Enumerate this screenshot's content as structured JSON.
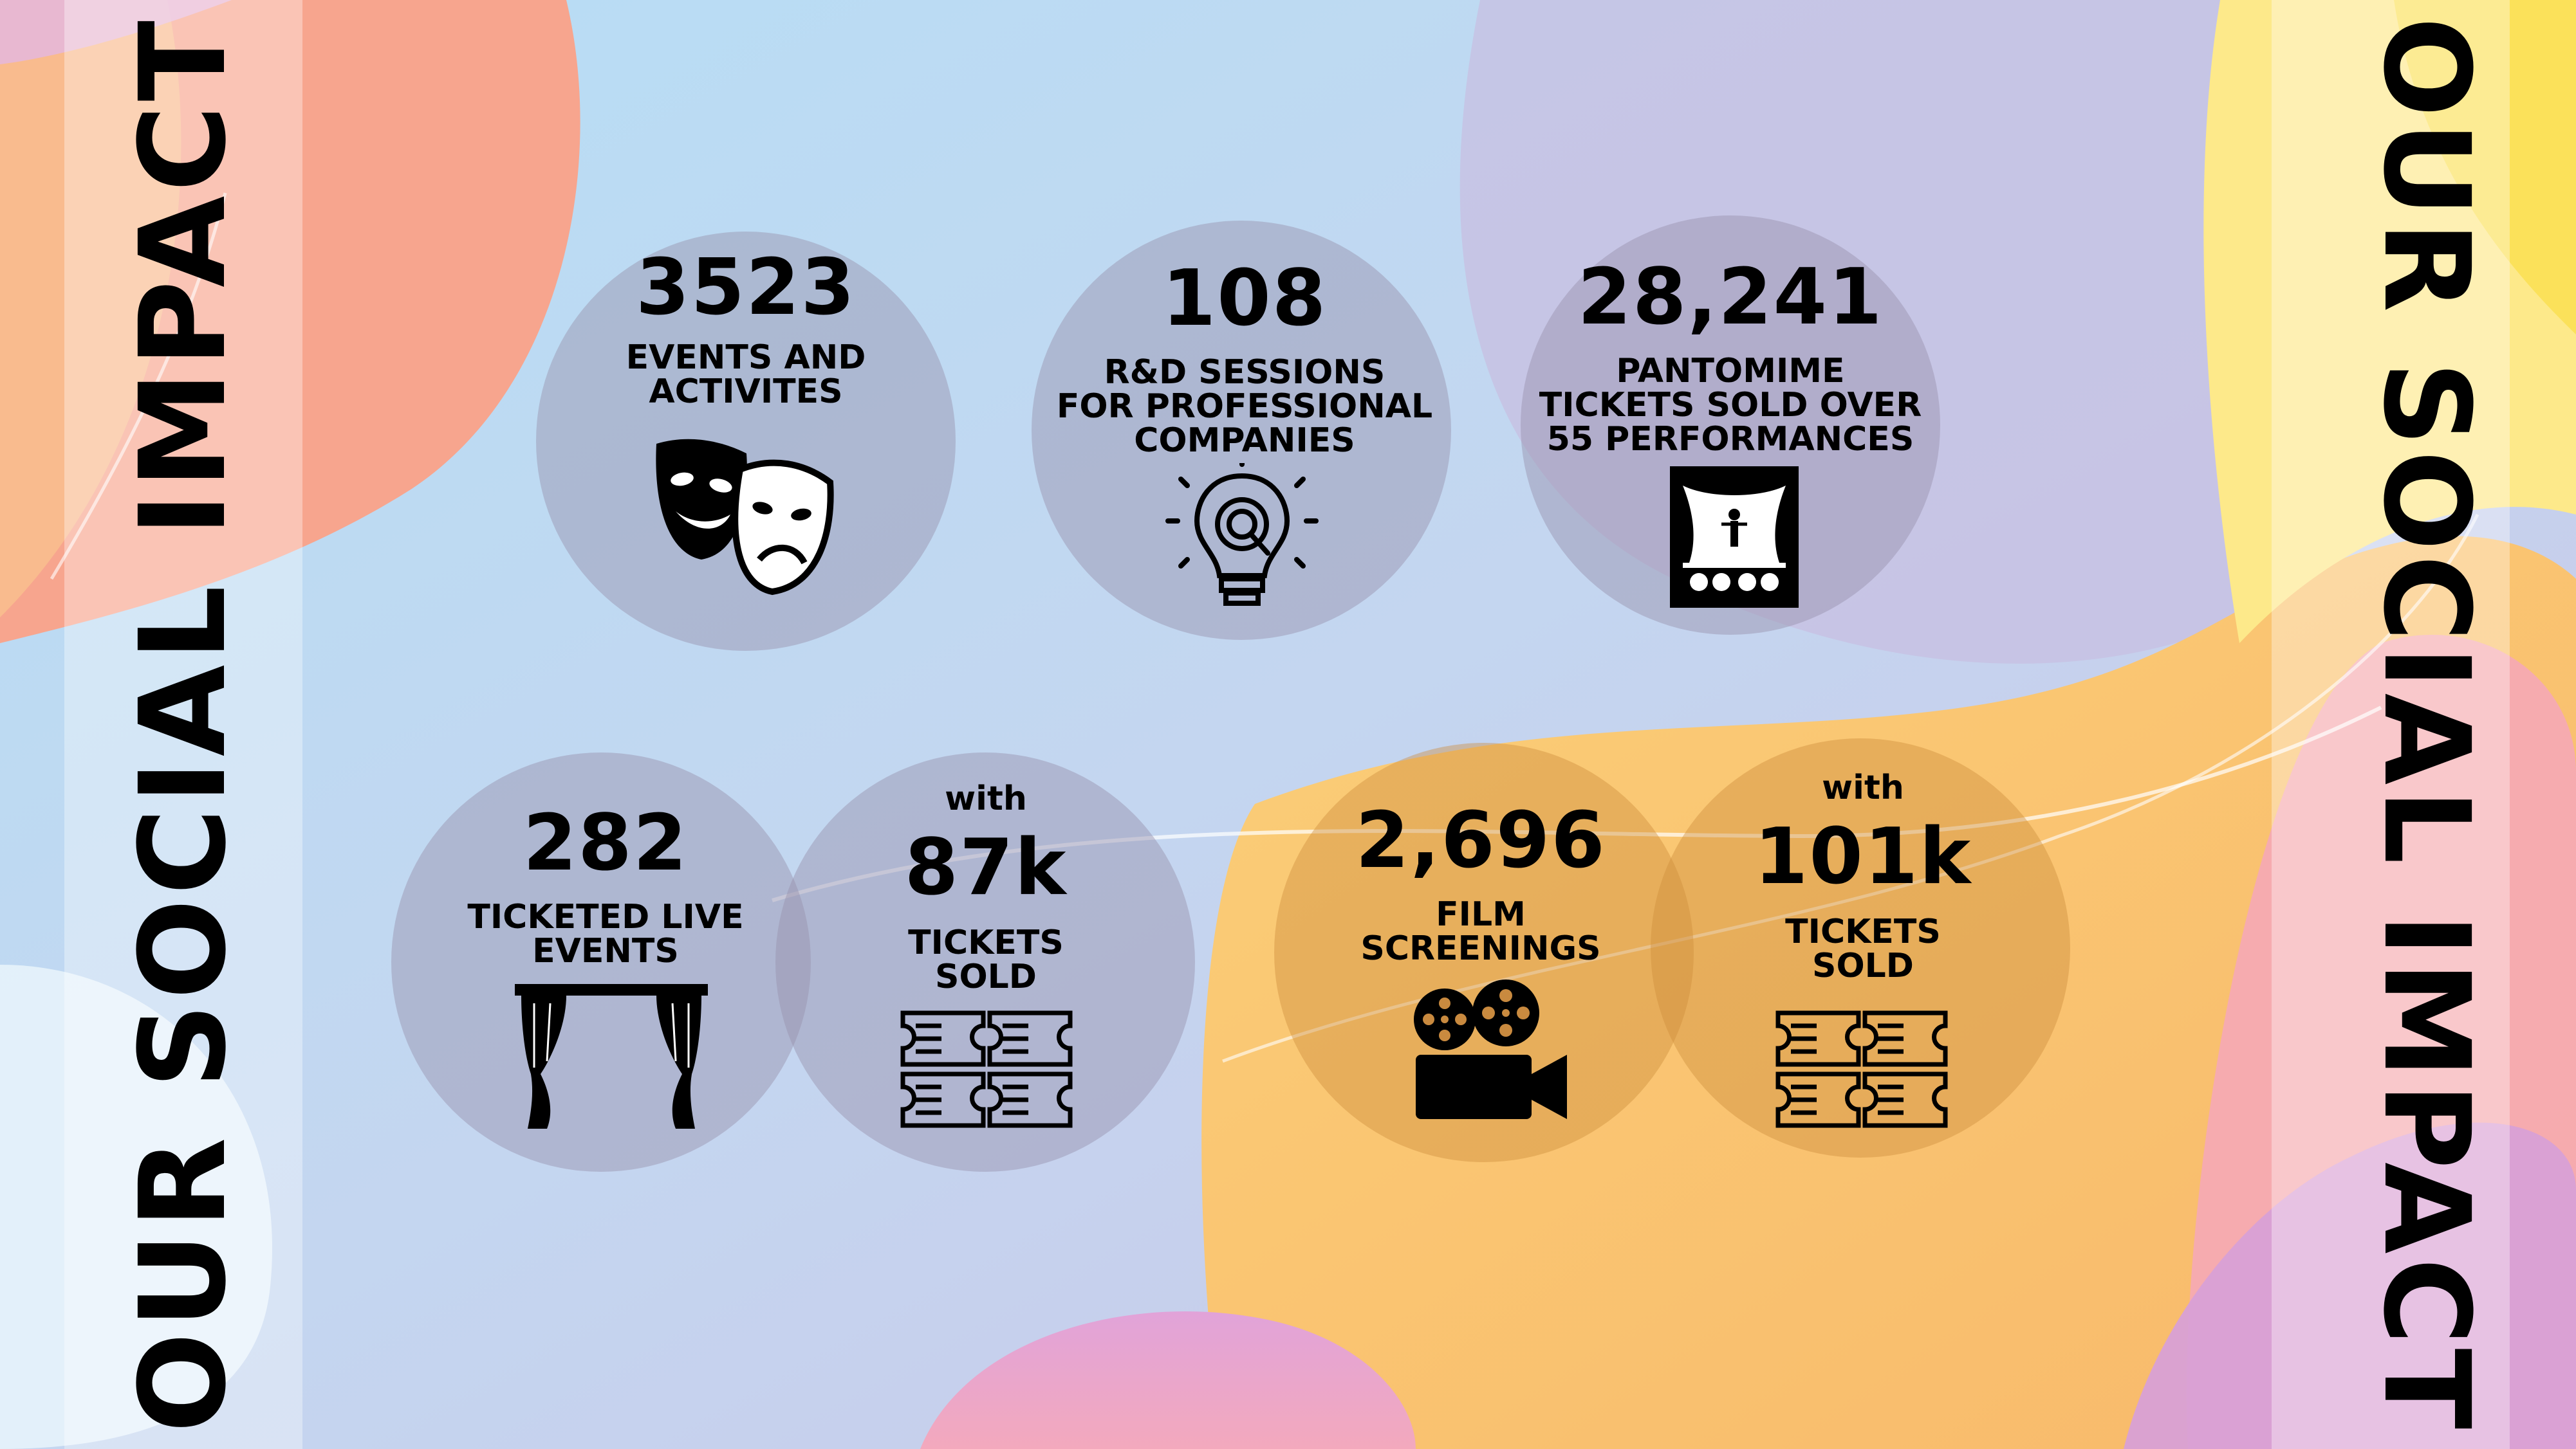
{
  "title_left": "OUR SOCIAL IMPACT",
  "title_right": "OUR SOCIAL IMPACT",
  "stats": {
    "events": {
      "number": "3523",
      "label_lines": [
        "EVENTS AND",
        "ACTIVITES"
      ],
      "icon": "theatre-masks-icon"
    },
    "rd": {
      "number": "108",
      "label_lines": [
        "R&D SESSIONS",
        "FOR PROFESSIONAL",
        "COMPANIES"
      ],
      "icon": "lightbulb-gear-icon"
    },
    "pantomime": {
      "number": "28,241",
      "label_lines": [
        "PANTOMIME",
        "TICKETS SOLD OVER",
        "55 PERFORMANCES"
      ],
      "icon": "stage-performer-icon"
    },
    "live": {
      "number": "282",
      "label_lines": [
        "TICKETED LIVE",
        "EVENTS"
      ],
      "icon": "stage-curtain-icon"
    },
    "live_tickets": {
      "prefix": "with",
      "number": "87k",
      "label_lines": [
        "TICKETS",
        "SOLD"
      ],
      "icon": "tickets-icon"
    },
    "film": {
      "number": "2,696",
      "label_lines": [
        "FILM",
        "SCREENINGS"
      ],
      "icon": "film-camera-icon"
    },
    "film_tickets": {
      "prefix": "with",
      "number": "101k",
      "label_lines": [
        "TICKETS",
        "SOLD"
      ],
      "icon": "tickets-icon"
    }
  },
  "colors": {
    "peach": "#f6a590",
    "sky": "#bfe0f4",
    "lavender": "#c5c3e3",
    "yellow": "#fbd86a",
    "orange": "#f9c36a",
    "pink": "#e8a6cf"
  }
}
